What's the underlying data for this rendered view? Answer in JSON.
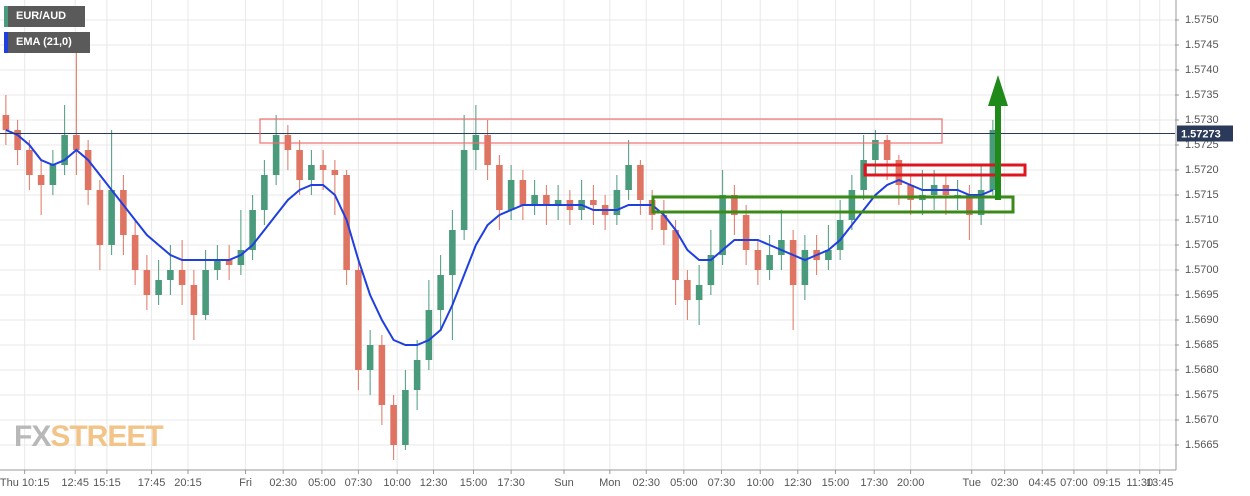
{
  "chart_data": {
    "type": "candlestick",
    "symbol": "EUR/AUD",
    "watermark": [
      "FX",
      "STREET"
    ],
    "last_price": 1.57273,
    "up_color": "#4a9a7c",
    "down_color": "#df7462",
    "xlim": [
      0,
      100
    ],
    "ylim": [
      1.566,
      1.5754
    ],
    "grid": true,
    "yticks": [
      1.5665,
      {
        "value": 1.567,
        "label": "1.5670"
      },
      1.5675,
      {
        "value": 1.568,
        "label": "1.5680"
      },
      1.5685,
      {
        "value": 1.569,
        "label": "1.5690"
      },
      1.5695,
      {
        "value": 1.57,
        "label": "1.5700"
      },
      1.5705,
      {
        "value": 1.571,
        "label": "1.5710"
      },
      1.5715,
      {
        "value": 1.572,
        "label": "1.5720"
      },
      1.5725,
      {
        "value": 1.573,
        "label": "1.5730"
      },
      1.5735,
      {
        "value": 1.574,
        "label": "1.5740"
      },
      1.5745,
      {
        "value": 1.575,
        "label": "1.5750"
      }
    ],
    "xticks": [
      {
        "value": 2.1,
        "label": "Thu 10:15"
      },
      {
        "value": 6.4,
        "label": "12:45"
      },
      {
        "value": 9.1,
        "label": "15:15"
      },
      {
        "value": 12.9,
        "label": "17:45"
      },
      {
        "value": 16,
        "label": "20:15"
      },
      {
        "value": 20.9,
        "label": "Fri"
      },
      {
        "value": 24.1,
        "label": "02:30"
      },
      {
        "value": 27.4,
        "label": "05:00"
      },
      {
        "value": 30.5,
        "label": "07:30"
      },
      {
        "value": 33.8,
        "label": "10:00"
      },
      {
        "value": 36.9,
        "label": "12:30"
      },
      {
        "value": 40.3,
        "label": "15:00"
      },
      {
        "value": 43.5,
        "label": "17:30"
      },
      {
        "value": 48,
        "label": "Sun"
      },
      {
        "value": 51.9,
        "label": "Mon"
      },
      {
        "value": 55,
        "label": "02:30"
      },
      {
        "value": 58.2,
        "label": "05:00"
      },
      {
        "value": 61.4,
        "label": "07:30"
      },
      {
        "value": 64.7,
        "label": "10:00"
      },
      {
        "value": 67.9,
        "label": "12:30"
      },
      {
        "value": 71.1,
        "label": "15:00"
      },
      {
        "value": 74.4,
        "label": "17:30"
      },
      {
        "value": 77.5,
        "label": "20:00"
      },
      {
        "value": 82.7,
        "label": "Tue"
      },
      {
        "value": 85.5,
        "label": "02:30"
      },
      {
        "value": 88.7,
        "label": "04:45"
      },
      {
        "value": 91.4,
        "label": "07:00"
      },
      {
        "value": 94.2,
        "label": "09:15"
      },
      {
        "value": 97,
        "label": "11:30"
      },
      {
        "value": 98.7,
        "label": "13:45"
      }
    ],
    "open": [
      1.5731,
      1.5728,
      1.5724,
      1.5719,
      1.5717,
      1.5721,
      1.5727,
      1.5724,
      1.5716,
      1.5705,
      1.5716,
      1.5707,
      1.57,
      1.5695,
      1.5698,
      1.57,
      1.5697,
      1.5691,
      1.57,
      1.5702,
      1.5701,
      1.5704,
      1.5712,
      1.5719,
      1.5727,
      1.5724,
      1.5718,
      1.5721,
      1.572,
      1.5719,
      1.57,
      1.568,
      1.5685,
      1.5673,
      1.5665,
      1.5676,
      1.5682,
      1.5692,
      1.5699,
      1.5708,
      1.5724,
      1.5727,
      1.5721,
      1.5712,
      1.5718,
      1.5713,
      1.5715,
      1.5713,
      1.5714,
      1.5712,
      1.5714,
      1.5713,
      1.5711,
      1.5716,
      1.5721,
      1.5714,
      1.5711,
      1.5708,
      1.5698,
      1.5694,
      1.5697,
      1.5703,
      1.5715,
      1.5711,
      1.5704,
      1.57,
      1.5703,
      1.5706,
      1.5697,
      1.5704,
      1.5702,
      1.5704,
      1.571,
      1.5716,
      1.5722,
      1.5726,
      1.5722,
      1.5717,
      1.5714,
      1.5715,
      1.5717,
      1.5715,
      1.5715,
      1.5711,
      1.5716
    ],
    "high": [
      1.5735,
      1.573,
      1.5726,
      1.5722,
      1.5724,
      1.5733,
      1.5745,
      1.5726,
      1.5718,
      1.5728,
      1.5719,
      1.571,
      1.5703,
      1.5702,
      1.5705,
      1.5706,
      1.57,
      1.5704,
      1.5705,
      1.5705,
      1.5712,
      1.5715,
      1.5722,
      1.5731,
      1.5729,
      1.5726,
      1.5724,
      1.5724,
      1.5722,
      1.572,
      1.5702,
      1.5688,
      1.5687,
      1.5675,
      1.568,
      1.5686,
      1.5698,
      1.5703,
      1.5712,
      1.5731,
      1.5733,
      1.573,
      1.5723,
      1.5721,
      1.572,
      1.5718,
      1.5717,
      1.5717,
      1.5716,
      1.5718,
      1.5717,
      1.5715,
      1.5719,
      1.5726,
      1.5722,
      1.5716,
      1.5714,
      1.571,
      1.57,
      1.5701,
      1.5708,
      1.572,
      1.5717,
      1.5713,
      1.5706,
      1.5707,
      1.5712,
      1.5708,
      1.5707,
      1.5707,
      1.5709,
      1.5714,
      1.5719,
      1.5727,
      1.5728,
      1.5727,
      1.5723,
      1.5719,
      1.572,
      1.572,
      1.5719,
      1.5718,
      1.5717,
      1.5721,
      1.573
    ],
    "low": [
      1.5725,
      1.5721,
      1.5716,
      1.5711,
      1.5715,
      1.5719,
      1.5719,
      1.5713,
      1.57,
      1.5703,
      1.5703,
      1.5697,
      1.5692,
      1.5693,
      1.5695,
      1.5693,
      1.5686,
      1.569,
      1.5698,
      1.5698,
      1.5699,
      1.5702,
      1.5709,
      1.5717,
      1.572,
      1.5715,
      1.5715,
      1.5716,
      1.5711,
      1.5697,
      1.5676,
      1.5675,
      1.5669,
      1.5662,
      1.5664,
      1.5672,
      1.568,
      1.5688,
      1.5686,
      1.5706,
      1.572,
      1.5718,
      1.5708,
      1.571,
      1.571,
      1.5711,
      1.5709,
      1.571,
      1.5709,
      1.571,
      1.5709,
      1.5708,
      1.5709,
      1.5714,
      1.5711,
      1.5708,
      1.5705,
      1.5693,
      1.569,
      1.5689,
      1.5695,
      1.5701,
      1.5707,
      1.5701,
      1.5697,
      1.5698,
      1.57,
      1.5688,
      1.5694,
      1.5699,
      1.57,
      1.5702,
      1.5708,
      1.5714,
      1.5719,
      1.5718,
      1.5713,
      1.5711,
      1.5711,
      1.5712,
      1.5711,
      1.5712,
      1.5706,
      1.5709,
      1.5715
    ],
    "close": [
      1.5728,
      1.5724,
      1.5719,
      1.5717,
      1.5721,
      1.5727,
      1.5724,
      1.5716,
      1.5705,
      1.5716,
      1.5707,
      1.57,
      1.5695,
      1.5698,
      1.57,
      1.5697,
      1.5691,
      1.57,
      1.5702,
      1.5701,
      1.5704,
      1.5712,
      1.5719,
      1.5727,
      1.5724,
      1.5718,
      1.5721,
      1.572,
      1.5719,
      1.57,
      1.568,
      1.5685,
      1.5673,
      1.5665,
      1.5676,
      1.5682,
      1.5692,
      1.5699,
      1.5708,
      1.5724,
      1.5727,
      1.5721,
      1.5712,
      1.5718,
      1.5713,
      1.5715,
      1.5713,
      1.5714,
      1.5712,
      1.5714,
      1.5713,
      1.5711,
      1.5716,
      1.5721,
      1.5714,
      1.5711,
      1.5708,
      1.5698,
      1.5694,
      1.5697,
      1.5703,
      1.5715,
      1.5711,
      1.5704,
      1.57,
      1.5703,
      1.5706,
      1.5697,
      1.5704,
      1.5702,
      1.5704,
      1.571,
      1.5716,
      1.5722,
      1.5726,
      1.5722,
      1.5717,
      1.5714,
      1.5715,
      1.5717,
      1.5715,
      1.5715,
      1.5711,
      1.5716,
      1.5728
    ],
    "series": [
      {
        "name": "EMA (21,0)",
        "color": "#1f3fe0",
        "values": [
          1.5728,
          1.5727,
          1.5725,
          1.5722,
          1.5721,
          1.5722,
          1.5724,
          1.5722,
          1.5719,
          1.5716,
          1.5713,
          1.571,
          1.5707,
          1.5705,
          1.5703,
          1.5702,
          1.5702,
          1.5702,
          1.5702,
          1.5702,
          1.5703,
          1.5705,
          1.5708,
          1.5711,
          1.5714,
          1.5716,
          1.5717,
          1.5717,
          1.5715,
          1.571,
          1.5702,
          1.5695,
          1.569,
          1.5686,
          1.5685,
          1.5685,
          1.5686,
          1.5688,
          1.5693,
          1.5699,
          1.5705,
          1.5709,
          1.5711,
          1.5712,
          1.5713,
          1.5713,
          1.5713,
          1.5713,
          1.5713,
          1.5713,
          1.5712,
          1.5712,
          1.5712,
          1.5713,
          1.5713,
          1.5713,
          1.5711,
          1.5708,
          1.5704,
          1.5702,
          1.5702,
          1.5704,
          1.5706,
          1.5706,
          1.5706,
          1.5705,
          1.5704,
          1.5703,
          1.5702,
          1.5703,
          1.5704,
          1.5706,
          1.5709,
          1.5712,
          1.5715,
          1.5717,
          1.5718,
          1.5717,
          1.5716,
          1.5716,
          1.5716,
          1.5716,
          1.5715,
          1.5715,
          1.5716
        ]
      }
    ]
  }
}
